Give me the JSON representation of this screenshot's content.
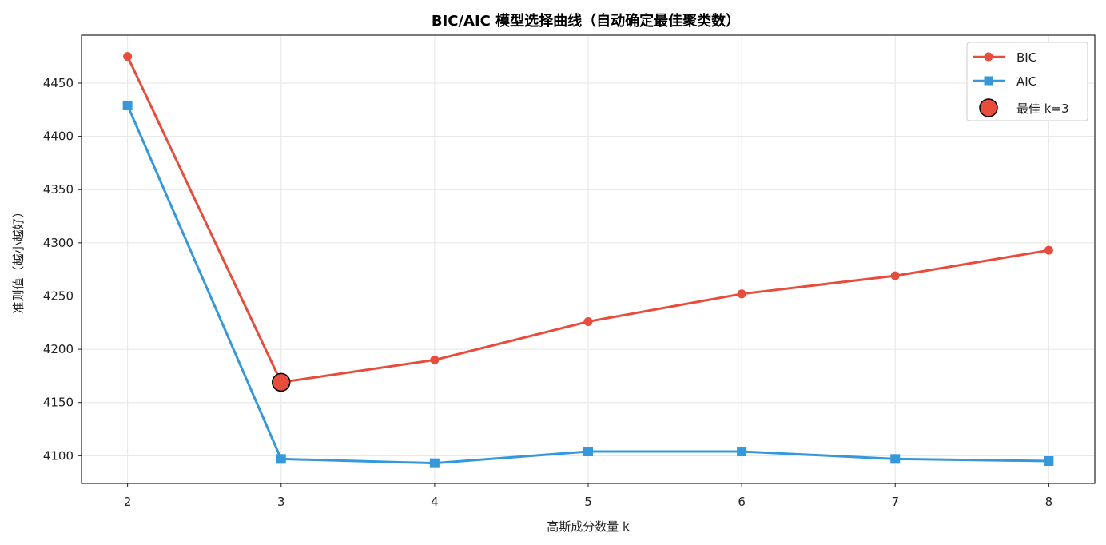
{
  "chart_data": {
    "type": "line",
    "title": "BIC/AIC 模型选择曲线（自动确定最佳聚类数）",
    "xlabel": "高斯成分数量 k",
    "ylabel": "准则值（越小越好）",
    "x": [
      2,
      3,
      4,
      5,
      6,
      7,
      8
    ],
    "xticks": [
      "2",
      "3",
      "4",
      "5",
      "6",
      "7",
      "8"
    ],
    "yticks": [
      "4100",
      "4150",
      "4200",
      "4250",
      "4300",
      "4350",
      "4400",
      "4450"
    ],
    "xlim": [
      1.7,
      8.3
    ],
    "ylim": [
      4074,
      4495
    ],
    "grid": true,
    "legend_position": "top-right",
    "series": [
      {
        "name": "BIC",
        "marker": "circle",
        "color": "#e74c3c",
        "values": [
          4475,
          4169,
          4190,
          4226,
          4252,
          4269,
          4293
        ]
      },
      {
        "name": "AIC",
        "marker": "square",
        "color": "#3498db",
        "values": [
          4429,
          4097,
          4093,
          4104,
          4104,
          4097,
          4095
        ]
      }
    ],
    "highlight": {
      "name": "最佳 k=3",
      "x": 3,
      "y": 4169,
      "color": "#e74c3c"
    }
  }
}
